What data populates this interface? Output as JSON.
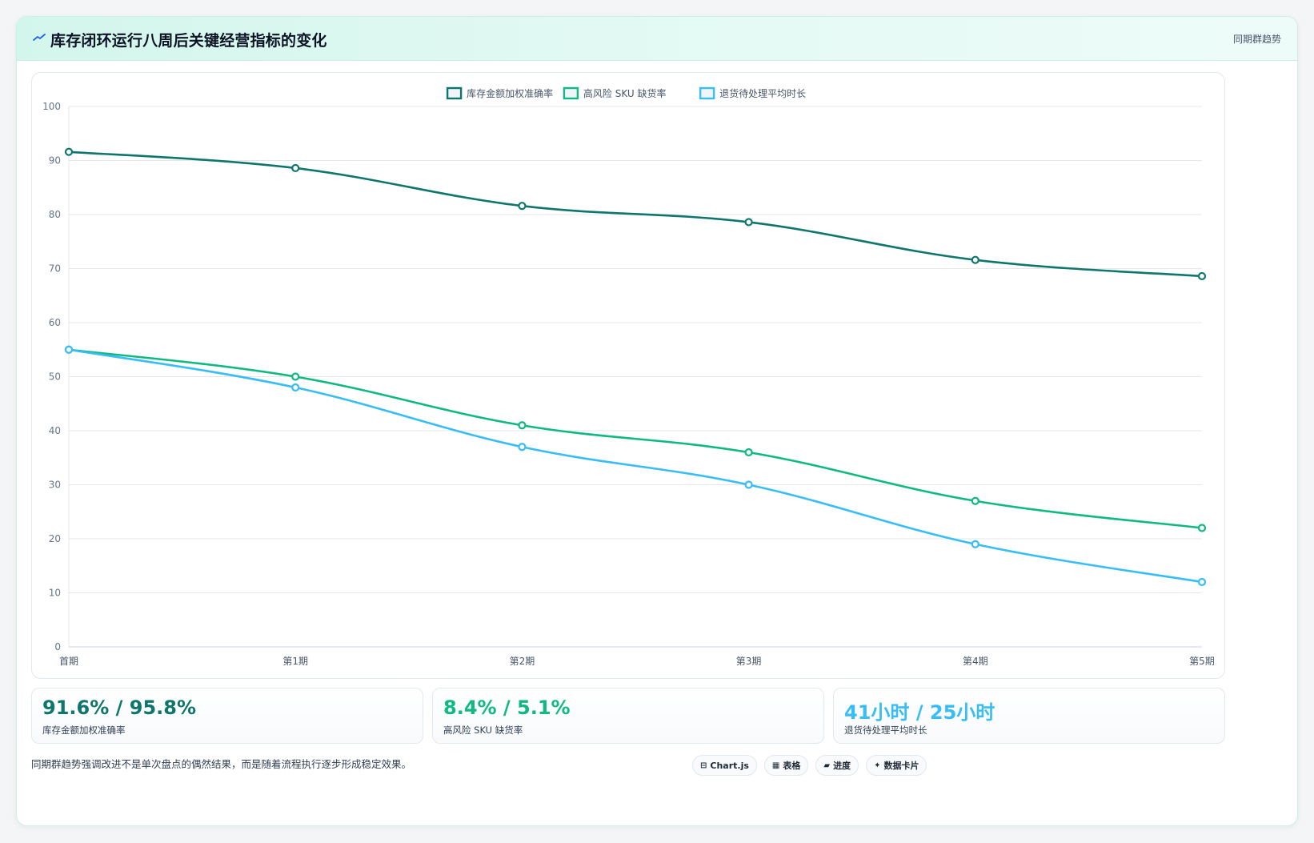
{
  "header": {
    "icon": "trend-line-icon",
    "title": "库存闭环运行八周后关键经营指标的变化",
    "tag": "同期群趋势"
  },
  "chart_data": {
    "type": "line",
    "title": "",
    "xlabel": "",
    "ylabel": "",
    "categories": [
      "首期",
      "第1期",
      "第2期",
      "第3期",
      "第4期",
      "第5期"
    ],
    "ylim": [
      0,
      100
    ],
    "yticks": [
      0,
      10,
      20,
      30,
      40,
      50,
      60,
      70,
      80,
      90,
      100
    ],
    "grid": true,
    "legend_position": "top-center",
    "series": [
      {
        "name": "库存金额加权准确率",
        "color": "#0f766e",
        "values": [
          91.6,
          88.6,
          81.6,
          78.6,
          71.6,
          68.6
        ]
      },
      {
        "name": "高风险 SKU 缺货率",
        "color": "#10b981",
        "values": [
          55,
          50,
          41,
          36,
          27,
          22
        ]
      },
      {
        "name": "退货待处理平均时长",
        "color": "#38bdf8",
        "values": [
          55,
          48,
          37,
          30,
          19,
          12
        ]
      }
    ]
  },
  "stats": [
    {
      "value": "91.6% / 95.8%",
      "label": "库存金额加权准确率",
      "color": "#0f766e"
    },
    {
      "value": "8.4% / 5.1%",
      "label": "高风险 SKU 缺货率",
      "color": "#10b981"
    },
    {
      "value": "41小时 / 25小时",
      "label": "退货待处理平均时长",
      "color": "#38bdf8"
    }
  ],
  "footnote": "同期群趋势强调改进不是单次盘点的偶然结果，而是随着流程执行逐步形成稳定效果。",
  "chips": [
    {
      "glyph": "⊟",
      "label": "Chart.js",
      "icon": "chart-icon"
    },
    {
      "glyph": "▦",
      "label": "表格",
      "icon": "table-icon"
    },
    {
      "glyph": "▰",
      "label": "进度",
      "icon": "progress-icon"
    },
    {
      "glyph": "✦",
      "label": "数据卡片",
      "icon": "sparkle-icon"
    }
  ]
}
